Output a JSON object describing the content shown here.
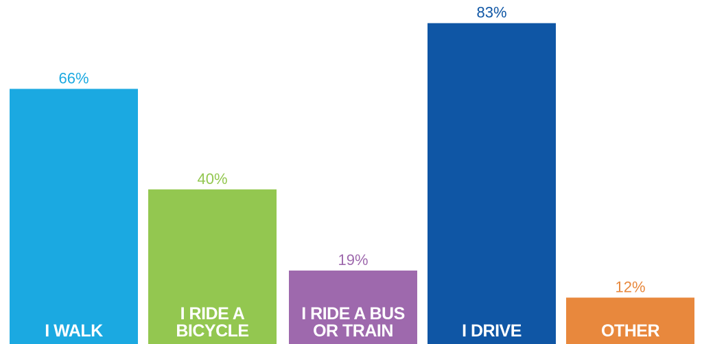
{
  "chart_data": {
    "type": "bar",
    "categories": [
      "I WALK",
      "I RIDE A BICYCLE",
      "I RIDE A BUS OR TRAIN",
      "I DRIVE",
      "OTHER"
    ],
    "values": [
      66,
      40,
      19,
      83,
      12
    ],
    "value_labels": [
      "66%",
      "40%",
      "19%",
      "83%",
      "12%"
    ],
    "colors": [
      "#1ba9e1",
      "#93c750",
      "#9e69ad",
      "#0f56a5",
      "#e8883d"
    ]
  }
}
